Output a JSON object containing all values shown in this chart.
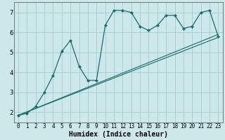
{
  "xlabel": "Humidex (Indice chaleur)",
  "bg_color": "#cce8ea",
  "grid_color": "#aacfd2",
  "line_color": "#1a6b6b",
  "xlim": [
    -0.5,
    23.5
  ],
  "ylim": [
    1.5,
    7.5
  ],
  "xticks": [
    0,
    1,
    2,
    3,
    4,
    5,
    6,
    7,
    8,
    9,
    10,
    11,
    12,
    13,
    14,
    15,
    16,
    17,
    18,
    19,
    20,
    21,
    22,
    23
  ],
  "yticks": [
    2,
    3,
    4,
    5,
    6,
    7
  ],
  "curve_x": [
    0,
    1,
    2,
    3,
    4,
    5,
    6,
    7,
    8,
    9,
    10,
    11,
    12,
    13,
    14,
    15,
    16,
    17,
    18,
    19,
    20,
    21,
    22,
    23
  ],
  "curve_y": [
    1.85,
    1.95,
    2.3,
    3.0,
    3.85,
    5.05,
    5.6,
    4.3,
    3.6,
    3.6,
    6.35,
    7.1,
    7.1,
    7.0,
    6.3,
    6.1,
    6.35,
    6.85,
    6.85,
    6.2,
    6.3,
    7.0,
    7.1,
    5.8
  ],
  "line1_x": [
    0,
    23
  ],
  "line1_y": [
    1.85,
    5.75
  ],
  "line2_x": [
    0,
    23
  ],
  "line2_y": [
    1.85,
    5.9
  ]
}
